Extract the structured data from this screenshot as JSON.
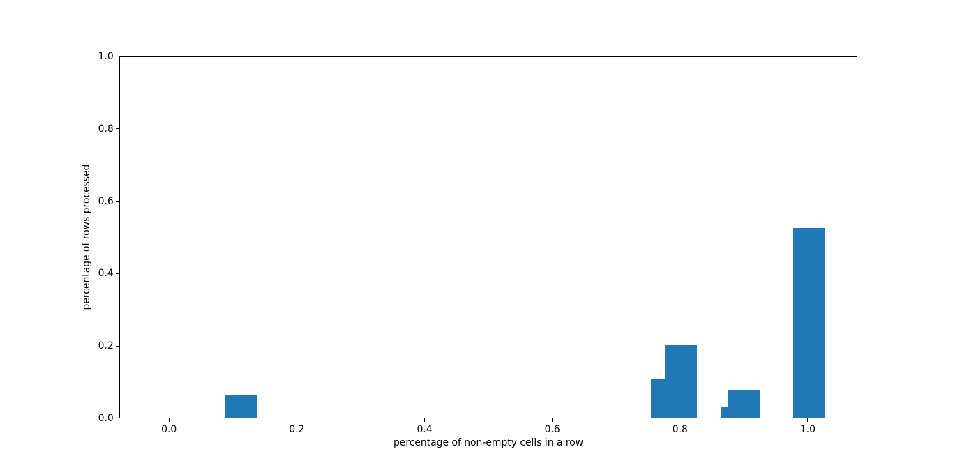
{
  "chart_data": {
    "type": "bar",
    "title": "",
    "xlabel": "percentage of non-empty cells in a row",
    "ylabel": "percentage of rows processed",
    "x": [
      0.111,
      0.778,
      0.8,
      0.889,
      0.9,
      1.0
    ],
    "values": [
      0.061,
      0.107,
      0.201,
      0.03,
      0.077,
      0.524
    ],
    "bar_width": 0.05,
    "bar_color": "#1f77b4",
    "xlim": [
      -0.078,
      1.078
    ],
    "ylim": [
      0,
      1
    ],
    "x_ticks": [
      0.0,
      0.2,
      0.4,
      0.6,
      0.8,
      1.0
    ],
    "x_tick_labels": [
      "0.0",
      "0.2",
      "0.4",
      "0.6",
      "0.8",
      "1.0"
    ],
    "y_ticks": [
      0.0,
      0.2,
      0.4,
      0.6,
      0.8,
      1.0
    ],
    "y_tick_labels": [
      "0.0",
      "0.2",
      "0.4",
      "0.6",
      "0.8",
      "1.0"
    ],
    "grid": false,
    "legend": "none",
    "spine_color": "#000000",
    "background_color": "#ffffff"
  }
}
